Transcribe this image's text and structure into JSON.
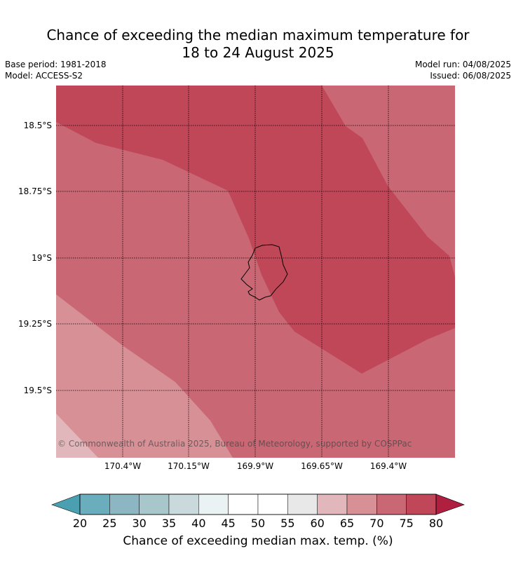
{
  "title_line1": "Chance of exceeding the median maximum temperature for",
  "title_line2": "18 to 24 August 2025",
  "meta_left": {
    "base_period": "Base period: 1981-2018",
    "model": "Model: ACCESS-S2"
  },
  "meta_right": {
    "model_run": "Model run: 04/08/2025",
    "issued": "Issued: 06/08/2025"
  },
  "map": {
    "latitude_labels": [
      "18.5°S",
      "18.75°S",
      "19°S",
      "19.25°S",
      "19.5°S"
    ],
    "longitude_labels": [
      "170.4°W",
      "170.15°W",
      "169.9°W",
      "169.65°W",
      "169.4°W"
    ],
    "copyright": "© Commonwealth of Australia 2025, Bureau of Meteorology, supported by COSPPac",
    "colors": {
      "band_75_80": "#c04758",
      "band_70_75": "#c96874",
      "band_65_70": "#d69096",
      "band_60_65": "#e2b7bb",
      "coastline": "#000000"
    }
  },
  "colorbar": {
    "ticks": [
      "20",
      "25",
      "30",
      "35",
      "40",
      "45",
      "50",
      "55",
      "60",
      "65",
      "70",
      "75",
      "80"
    ],
    "title": "Chance of exceeding median max. temp. (%)",
    "colors": [
      "#4a9fb0",
      "#6aaebd",
      "#8cb7c2",
      "#a8c7cb",
      "#c9d9dc",
      "#eaf2f3",
      "#ffffff",
      "#ffffff",
      "#e8e8e8",
      "#e2b7bb",
      "#d69096",
      "#c96874",
      "#c04758",
      "#b01f3f"
    ]
  }
}
